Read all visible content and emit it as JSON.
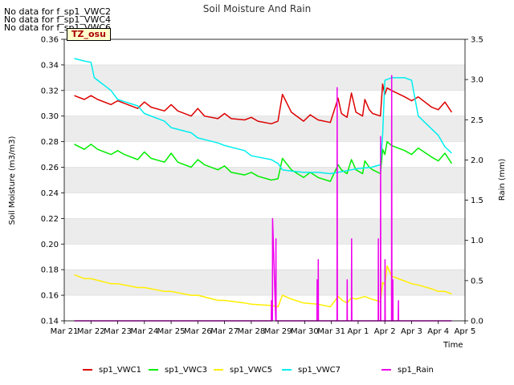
{
  "notes": [
    "No data for f_sp1_VWC2",
    "No data for f_sp1_VWC4",
    "No data for f_sp1_VWC6"
  ],
  "tz_label": "TZ_osu",
  "colors": {
    "sp1_VWC1": "#dd0000",
    "sp1_VWC3": "#00ee00",
    "sp1_VWC5": "#ffee00",
    "sp1_VWC7": "#00eeee",
    "sp1_Rain": "#ee00ee",
    "band": "#ececec"
  },
  "chart_data": {
    "type": "line",
    "title": "Soil Moisture And Rain",
    "xlabel": "Time",
    "ylabel": "Soil Moisture (m3/m3)",
    "y2label": "Rain (mm)",
    "xlim": [
      "2024-03-21",
      "2024-04-05"
    ],
    "ylim": [
      0.14,
      0.36
    ],
    "y2lim": [
      0.0,
      3.5
    ],
    "grid": "horizontal bands",
    "legend_position": "bottom",
    "x_tick_labels": [
      "Mar 21",
      "Mar 22",
      "Mar 23",
      "Mar 24",
      "Mar 25",
      "Mar 26",
      "Mar 27",
      "Mar 28",
      "Mar 29",
      "Mar 30",
      "Mar 31",
      "Apr 1",
      "Apr 2",
      "Apr 3",
      "Apr 4",
      "Apr 5"
    ],
    "y_tick_labels": [
      "0.14",
      "0.16",
      "0.18",
      "0.20",
      "0.22",
      "0.24",
      "0.26",
      "0.28",
      "0.30",
      "0.32",
      "0.34",
      "0.36"
    ],
    "y2_tick_labels": [
      "0.0",
      "0.5",
      "1.0",
      "1.5",
      "2.0",
      "2.5",
      "3.0",
      "3.5"
    ],
    "series": [
      {
        "name": "sp1_VWC1",
        "axis": "left",
        "x": [
          "2024-03-21 09:00",
          "2024-03-21 18:00",
          "2024-03-22 00:00",
          "2024-03-22 06:00",
          "2024-03-22 18:00",
          "2024-03-23 00:00",
          "2024-03-23 06:00",
          "2024-03-23 18:00",
          "2024-03-24 00:00",
          "2024-03-24 06:00",
          "2024-03-24 18:00",
          "2024-03-25 00:00",
          "2024-03-25 06:00",
          "2024-03-25 18:00",
          "2024-03-26 00:00",
          "2024-03-26 06:00",
          "2024-03-26 18:00",
          "2024-03-27 00:00",
          "2024-03-27 06:00",
          "2024-03-27 18:00",
          "2024-03-28 00:00",
          "2024-03-28 06:00",
          "2024-03-28 18:00",
          "2024-03-29 00:00",
          "2024-03-29 04:00",
          "2024-03-29 12:00",
          "2024-03-29 23:00",
          "2024-03-30 05:00",
          "2024-03-30 12:00",
          "2024-03-30 23:00",
          "2024-03-31 06:00",
          "2024-03-31 09:00",
          "2024-03-31 14:00",
          "2024-03-31 18:00",
          "2024-03-31 22:00",
          "2024-04-01 04:00",
          "2024-04-01 06:00",
          "2024-04-01 10:00",
          "2024-04-01 13:00",
          "2024-04-01 20:00",
          "2024-04-01 22:00",
          "2024-04-02 00:00",
          "2024-04-02 02:00",
          "2024-04-02 06:00",
          "2024-04-02 18:00",
          "2024-04-03 00:00",
          "2024-04-03 06:00",
          "2024-04-03 18:00",
          "2024-04-04 00:00",
          "2024-04-04 06:00",
          "2024-04-04 12:00"
        ],
        "y": [
          0.316,
          0.313,
          0.316,
          0.313,
          0.309,
          0.312,
          0.31,
          0.306,
          0.311,
          0.307,
          0.304,
          0.309,
          0.304,
          0.3,
          0.306,
          0.3,
          0.298,
          0.302,
          0.298,
          0.297,
          0.299,
          0.296,
          0.294,
          0.296,
          0.317,
          0.303,
          0.296,
          0.301,
          0.297,
          0.295,
          0.314,
          0.302,
          0.299,
          0.318,
          0.303,
          0.3,
          0.313,
          0.305,
          0.302,
          0.3,
          0.325,
          0.317,
          0.322,
          0.32,
          0.315,
          0.312,
          0.315,
          0.307,
          0.305,
          0.311,
          0.303
        ]
      },
      {
        "name": "sp1_VWC3",
        "axis": "left",
        "x": [
          "2024-03-21 09:00",
          "2024-03-21 18:00",
          "2024-03-22 00:00",
          "2024-03-22 06:00",
          "2024-03-22 18:00",
          "2024-03-23 00:00",
          "2024-03-23 06:00",
          "2024-03-23 18:00",
          "2024-03-24 00:00",
          "2024-03-24 06:00",
          "2024-03-24 18:00",
          "2024-03-25 00:00",
          "2024-03-25 06:00",
          "2024-03-25 18:00",
          "2024-03-26 00:00",
          "2024-03-26 06:00",
          "2024-03-26 18:00",
          "2024-03-27 00:00",
          "2024-03-27 06:00",
          "2024-03-27 18:00",
          "2024-03-28 00:00",
          "2024-03-28 06:00",
          "2024-03-28 18:00",
          "2024-03-29 00:00",
          "2024-03-29 04:00",
          "2024-03-29 12:00",
          "2024-03-29 23:00",
          "2024-03-30 05:00",
          "2024-03-30 12:00",
          "2024-03-30 23:00",
          "2024-03-31 06:00",
          "2024-03-31 09:00",
          "2024-03-31 14:00",
          "2024-03-31 18:00",
          "2024-03-31 22:00",
          "2024-04-01 04:00",
          "2024-04-01 06:00",
          "2024-04-01 10:00",
          "2024-04-01 13:00",
          "2024-04-01 20:00",
          "2024-04-01 22:00",
          "2024-04-02 00:00",
          "2024-04-02 02:00",
          "2024-04-02 06:00",
          "2024-04-02 18:00",
          "2024-04-03 00:00",
          "2024-04-03 06:00",
          "2024-04-03 18:00",
          "2024-04-04 00:00",
          "2024-04-04 06:00",
          "2024-04-04 12:00"
        ],
        "y": [
          0.278,
          0.274,
          0.278,
          0.274,
          0.27,
          0.273,
          0.27,
          0.266,
          0.272,
          0.267,
          0.264,
          0.271,
          0.264,
          0.26,
          0.266,
          0.262,
          0.258,
          0.261,
          0.256,
          0.254,
          0.256,
          0.253,
          0.25,
          0.251,
          0.267,
          0.258,
          0.252,
          0.256,
          0.252,
          0.249,
          0.262,
          0.258,
          0.255,
          0.266,
          0.258,
          0.255,
          0.265,
          0.26,
          0.258,
          0.255,
          0.274,
          0.27,
          0.28,
          0.277,
          0.273,
          0.27,
          0.275,
          0.268,
          0.265,
          0.271,
          0.263
        ]
      },
      {
        "name": "sp1_VWC5",
        "axis": "left",
        "x": [
          "2024-03-21 09:00",
          "2024-03-21 18:00",
          "2024-03-22 00:00",
          "2024-03-22 18:00",
          "2024-03-23 00:00",
          "2024-03-23 18:00",
          "2024-03-24 00:00",
          "2024-03-24 18:00",
          "2024-03-25 00:00",
          "2024-03-25 18:00",
          "2024-03-26 00:00",
          "2024-03-26 18:00",
          "2024-03-27 00:00",
          "2024-03-27 18:00",
          "2024-03-28 00:00",
          "2024-03-28 18:00",
          "2024-03-29 00:00",
          "2024-03-29 04:00",
          "2024-03-29 12:00",
          "2024-03-29 23:00",
          "2024-03-30 12:00",
          "2024-03-30 23:00",
          "2024-03-31 06:00",
          "2024-03-31 10:00",
          "2024-03-31 14:00",
          "2024-03-31 18:00",
          "2024-03-31 22:00",
          "2024-04-01 06:00",
          "2024-04-01 12:00",
          "2024-04-01 20:00",
          "2024-04-01 22:00",
          "2024-04-02 00:00",
          "2024-04-02 02:00",
          "2024-04-02 06:00",
          "2024-04-02 18:00",
          "2024-04-03 00:00",
          "2024-04-03 06:00",
          "2024-04-03 18:00",
          "2024-04-04 00:00",
          "2024-04-04 06:00",
          "2024-04-04 12:00"
        ],
        "y": [
          0.176,
          0.173,
          0.173,
          0.169,
          0.169,
          0.166,
          0.166,
          0.163,
          0.163,
          0.16,
          0.16,
          0.156,
          0.156,
          0.154,
          0.153,
          0.152,
          0.151,
          0.16,
          0.157,
          0.154,
          0.153,
          0.151,
          0.159,
          0.156,
          0.154,
          0.158,
          0.157,
          0.159,
          0.157,
          0.155,
          0.17,
          0.168,
          0.183,
          0.175,
          0.171,
          0.169,
          0.168,
          0.165,
          0.163,
          0.163,
          0.161
        ]
      },
      {
        "name": "sp1_VWC7",
        "axis": "left",
        "x": [
          "2024-03-21 09:00",
          "2024-03-21 18:00",
          "2024-03-22 00:00",
          "2024-03-22 03:00",
          "2024-03-22 18:00",
          "2024-03-23 00:00",
          "2024-03-23 18:00",
          "2024-03-24 00:00",
          "2024-03-24 18:00",
          "2024-03-25 00:00",
          "2024-03-25 18:00",
          "2024-03-26 00:00",
          "2024-03-26 18:00",
          "2024-03-27 00:00",
          "2024-03-27 18:00",
          "2024-03-28 00:00",
          "2024-03-28 18:00",
          "2024-03-29 00:00",
          "2024-03-29 04:00",
          "2024-03-29 12:00",
          "2024-03-29 23:00",
          "2024-03-30 12:00",
          "2024-03-30 23:00",
          "2024-03-31 06:00",
          "2024-03-31 12:00",
          "2024-03-31 18:00",
          "2024-04-01 00:00",
          "2024-04-01 12:00",
          "2024-04-01 20:00",
          "2024-04-01 22:00",
          "2024-04-02 00:00",
          "2024-04-02 06:00",
          "2024-04-02 18:00",
          "2024-04-03 00:00",
          "2024-04-03 06:00",
          "2024-04-03 18:00",
          "2024-04-04 00:00",
          "2024-04-04 06:00",
          "2024-04-04 12:00"
        ],
        "y": [
          0.345,
          0.343,
          0.342,
          0.33,
          0.32,
          0.313,
          0.308,
          0.302,
          0.296,
          0.291,
          0.287,
          0.283,
          0.279,
          0.277,
          0.273,
          0.269,
          0.266,
          0.263,
          0.258,
          0.257,
          0.256,
          0.256,
          0.255,
          0.256,
          0.257,
          0.258,
          0.259,
          0.26,
          0.262,
          0.285,
          0.328,
          0.33,
          0.33,
          0.328,
          0.3,
          0.29,
          0.285,
          0.276,
          0.271
        ]
      },
      {
        "name": "sp1_Rain",
        "axis": "right",
        "x": [
          "2024-03-21 09:00",
          "2024-03-28 18:00",
          "2024-03-28 18:10",
          "2024-03-28 19:00",
          "2024-03-28 19:10",
          "2024-03-28 22:00",
          "2024-03-28 22:10",
          "2024-03-28 22:20",
          "2024-03-28 23:30",
          "2024-03-28 23:40",
          "2024-03-28 23:50",
          "2024-03-30 11:00",
          "2024-03-30 11:10",
          "2024-03-30 11:20",
          "2024-03-30 12:00",
          "2024-03-30 12:10",
          "2024-03-30 12:20",
          "2024-03-31 05:00",
          "2024-03-31 05:10",
          "2024-03-31 05:20",
          "2024-03-31 14:00",
          "2024-03-31 14:10",
          "2024-03-31 14:20",
          "2024-03-31 18:00",
          "2024-03-31 18:10",
          "2024-03-31 18:20",
          "2024-04-01 18:00",
          "2024-04-01 18:10",
          "2024-04-01 18:20",
          "2024-04-01 20:00",
          "2024-04-01 20:10",
          "2024-04-01 20:20",
          "2024-04-02 00:00",
          "2024-04-02 00:10",
          "2024-04-02 00:20",
          "2024-04-02 06:00",
          "2024-04-02 06:10",
          "2024-04-02 06:20",
          "2024-04-02 07:00",
          "2024-04-02 07:10",
          "2024-04-02 07:20",
          "2024-04-02 12:00",
          "2024-04-02 12:10",
          "2024-04-02 12:20",
          "2024-04-04 12:00"
        ],
        "y": [
          0.0,
          0.0,
          0.25,
          0.0,
          1.27,
          0.0,
          1.02,
          0.0,
          0.0,
          0.0,
          0.0,
          0.0,
          0.51,
          0.0,
          0.0,
          0.76,
          0.0,
          0.0,
          2.9,
          0.0,
          0.0,
          0.51,
          0.0,
          0.0,
          1.02,
          0.0,
          0.0,
          1.02,
          0.0,
          0.0,
          2.29,
          0.0,
          0.0,
          0.76,
          0.0,
          0.0,
          3.05,
          0.0,
          0.0,
          0.51,
          0.0,
          0.0,
          0.25,
          0.0,
          0.0
        ]
      }
    ]
  }
}
